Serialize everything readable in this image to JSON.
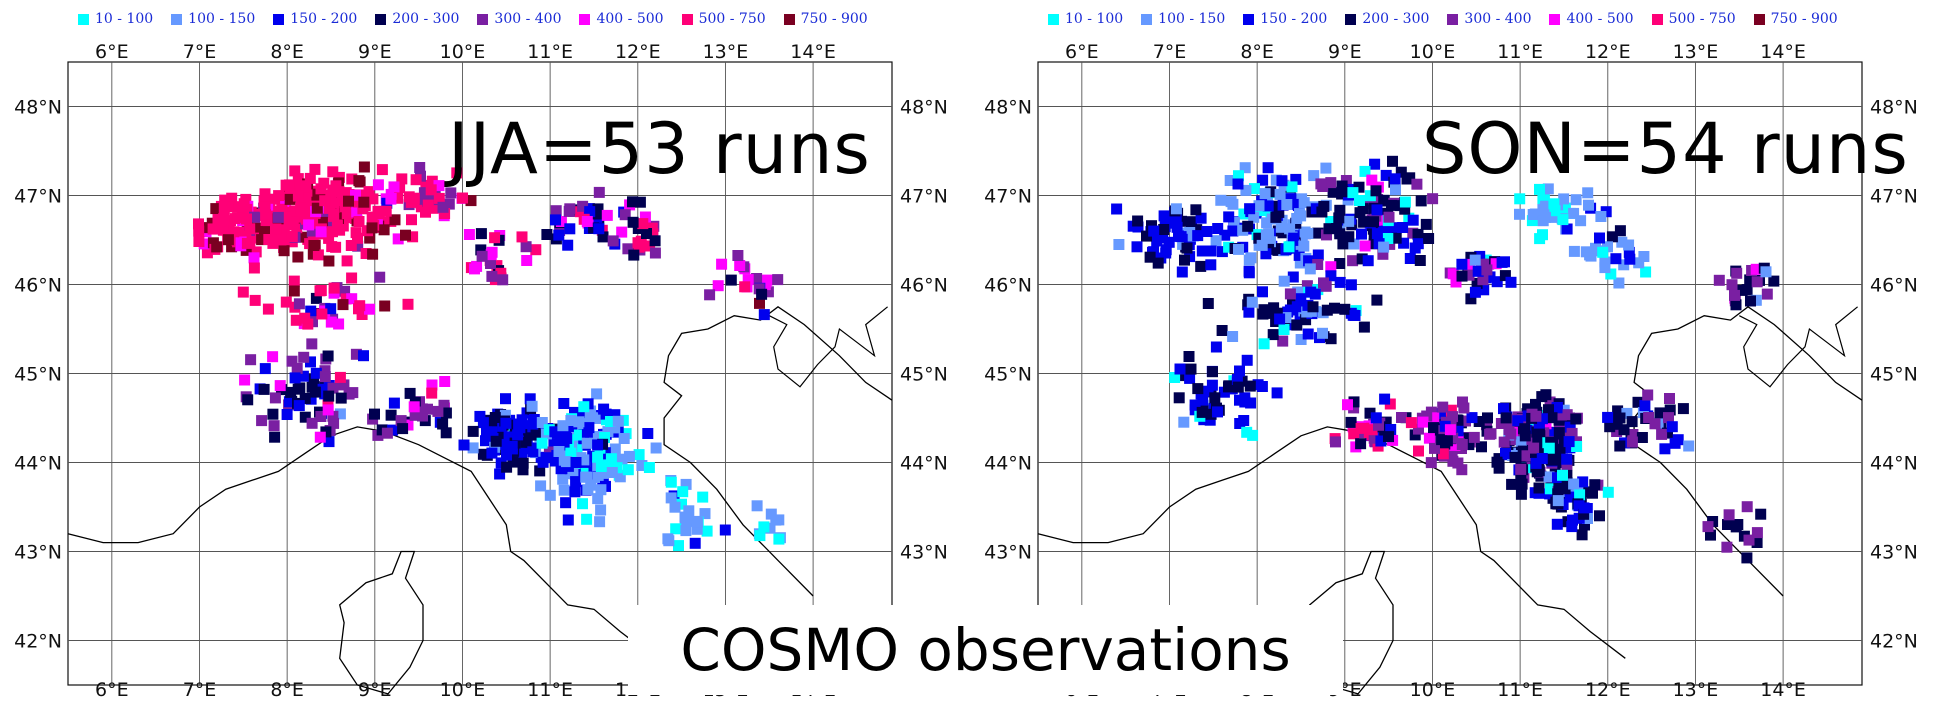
{
  "legend": [
    {
      "label": "10 - 100",
      "color": "#00ffff"
    },
    {
      "label": "100 - 150",
      "color": "#6699ff"
    },
    {
      "label": "150 - 200",
      "color": "#0000ee"
    },
    {
      "label": "200 - 300",
      "color": "#000050"
    },
    {
      "label": "300 - 400",
      "color": "#7a1fa2"
    },
    {
      "label": "400 - 500",
      "color": "#ff00ff"
    },
    {
      "label": "500 - 750",
      "color": "#ff0077"
    },
    {
      "label": "750 - 900",
      "color": "#7a0021"
    }
  ],
  "map": {
    "lon_ticks": [
      "6°E",
      "7°E",
      "8°E",
      "9°E",
      "10°E",
      "11°E",
      "12°E",
      "13°E",
      "14°E"
    ],
    "lat_ticks": [
      "48°N",
      "47°N",
      "46°N",
      "45°N",
      "44°N",
      "43°N",
      "42°N"
    ]
  },
  "panels": [
    {
      "title": "JJA=53 runs"
    },
    {
      "title": "SON=54 runs"
    }
  ],
  "caption": "COSMO observations"
}
